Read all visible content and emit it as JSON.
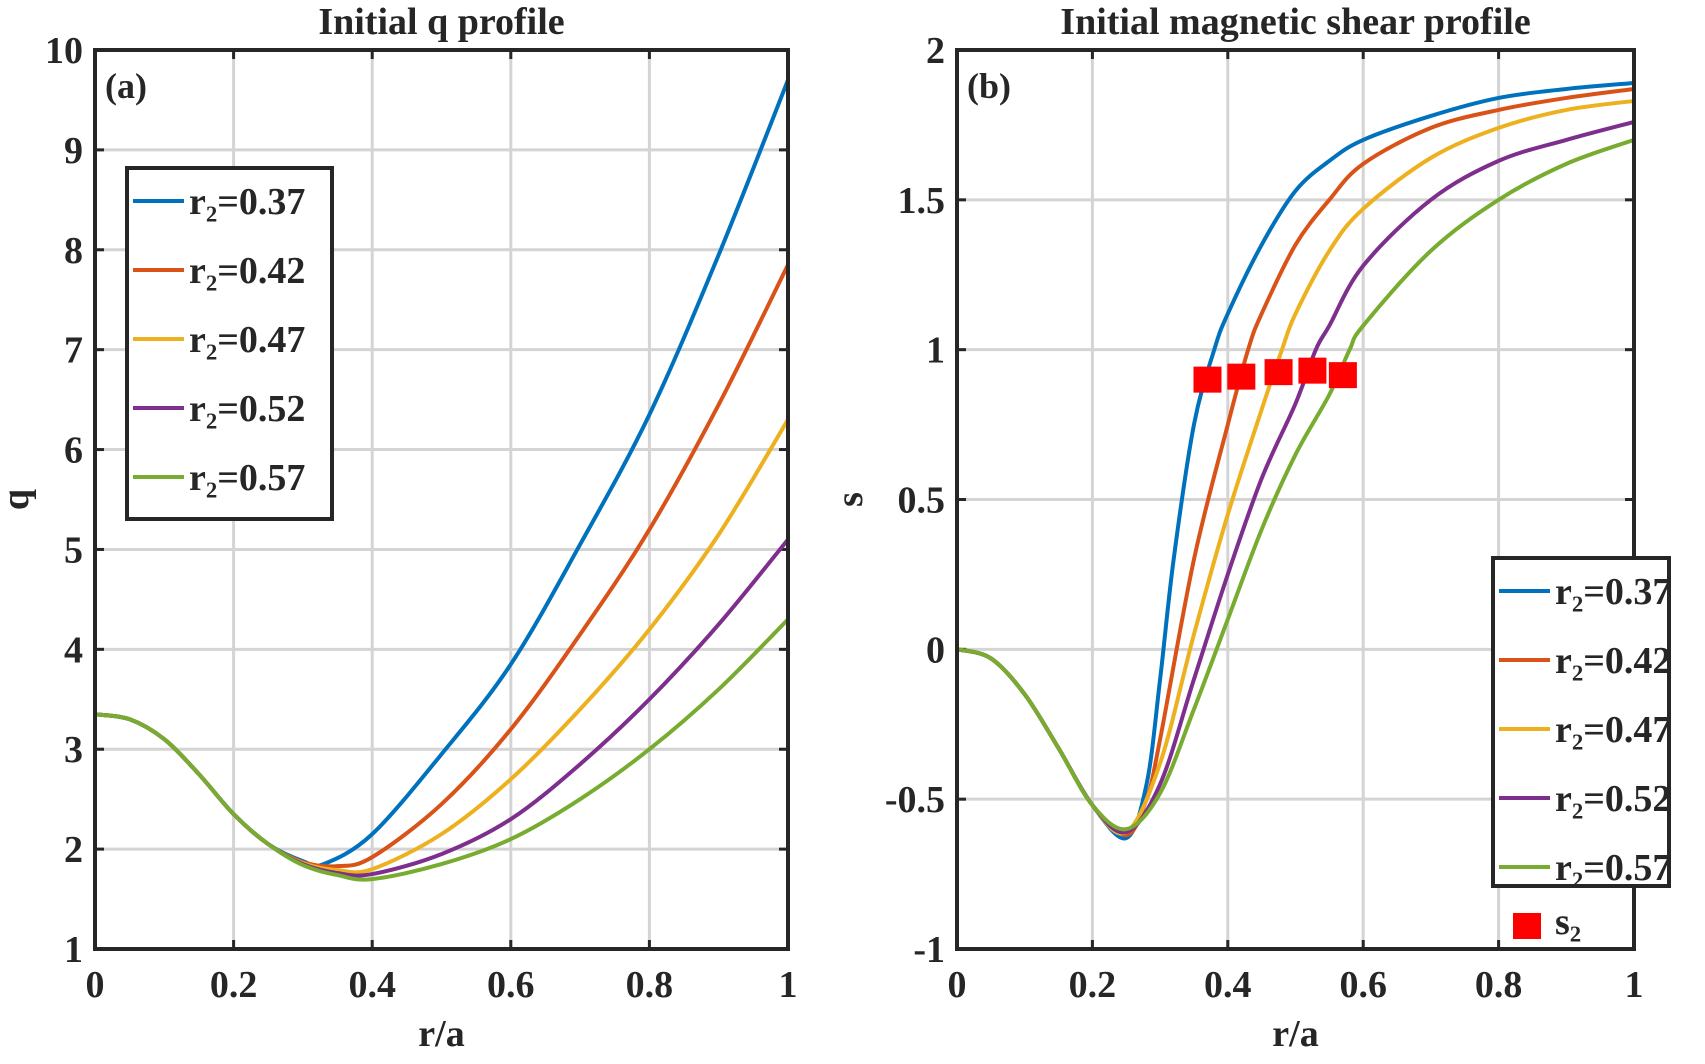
{
  "chart_data": [
    {
      "type": "line",
      "panel_label": "(a)",
      "title": "Initial q profile",
      "xlabel": "r/a",
      "ylabel": "q",
      "xlim": [
        0,
        1
      ],
      "ylim": [
        1,
        10
      ],
      "xticks": [
        "0",
        "0.2",
        "0.4",
        "0.6",
        "0.8",
        "1"
      ],
      "yticks": [
        "1",
        "2",
        "3",
        "4",
        "5",
        "6",
        "7",
        "8",
        "9",
        "10"
      ],
      "grid": true,
      "legend_position": "upper-left",
      "series": [
        {
          "name": "r₂=0.37",
          "color": "#0072BD",
          "x": [
            0,
            0.05,
            0.1,
            0.15,
            0.2,
            0.25,
            0.3,
            0.33,
            0.4,
            0.5,
            0.6,
            0.7,
            0.8,
            0.9,
            1.0
          ],
          "y": [
            3.35,
            3.3,
            3.1,
            2.75,
            2.35,
            2.05,
            1.88,
            1.85,
            2.15,
            2.95,
            3.85,
            5.05,
            6.35,
            7.95,
            9.7
          ]
        },
        {
          "name": "r₂=0.42",
          "color": "#D95319",
          "x": [
            0,
            0.05,
            0.1,
            0.15,
            0.2,
            0.25,
            0.3,
            0.35,
            0.4,
            0.5,
            0.6,
            0.7,
            0.8,
            0.9,
            1.0
          ],
          "y": [
            3.35,
            3.3,
            3.1,
            2.75,
            2.35,
            2.05,
            1.87,
            1.83,
            1.92,
            2.45,
            3.2,
            4.15,
            5.2,
            6.45,
            7.85
          ]
        },
        {
          "name": "r₂=0.47",
          "color": "#EDB120",
          "x": [
            0,
            0.05,
            0.1,
            0.15,
            0.2,
            0.25,
            0.3,
            0.35,
            0.4,
            0.5,
            0.6,
            0.7,
            0.8,
            0.9,
            1.0
          ],
          "y": [
            3.35,
            3.3,
            3.1,
            2.75,
            2.35,
            2.05,
            1.86,
            1.79,
            1.8,
            2.15,
            2.7,
            3.4,
            4.2,
            5.15,
            6.3
          ]
        },
        {
          "name": "r₂=0.52",
          "color": "#7E2F8E",
          "x": [
            0,
            0.05,
            0.1,
            0.15,
            0.2,
            0.25,
            0.3,
            0.35,
            0.4,
            0.5,
            0.6,
            0.7,
            0.8,
            0.9,
            1.0
          ],
          "y": [
            3.35,
            3.3,
            3.1,
            2.75,
            2.35,
            2.05,
            1.85,
            1.76,
            1.75,
            1.95,
            2.3,
            2.85,
            3.5,
            4.25,
            5.1
          ]
        },
        {
          "name": "r₂=0.57",
          "color": "#77AC30",
          "x": [
            0,
            0.05,
            0.1,
            0.15,
            0.2,
            0.25,
            0.3,
            0.35,
            0.4,
            0.5,
            0.6,
            0.7,
            0.8,
            0.9,
            1.0
          ],
          "y": [
            3.35,
            3.3,
            3.1,
            2.75,
            2.35,
            2.05,
            1.84,
            1.74,
            1.7,
            1.85,
            2.1,
            2.5,
            3.0,
            3.6,
            4.3
          ]
        }
      ]
    },
    {
      "type": "line",
      "panel_label": "(b)",
      "title": "Initial magnetic shear profile",
      "xlabel": "r/a",
      "ylabel": "s",
      "xlim": [
        0,
        1
      ],
      "ylim": [
        -1,
        2
      ],
      "xticks": [
        "0",
        "0.2",
        "0.4",
        "0.6",
        "0.8",
        "1"
      ],
      "yticks": [
        "-1",
        "-0.5",
        "0",
        "0.5",
        "1",
        "1.5",
        "2"
      ],
      "grid": true,
      "legend_position": "lower-right",
      "series": [
        {
          "name": "r₂=0.37",
          "color": "#0072BD",
          "x": [
            0,
            0.05,
            0.1,
            0.15,
            0.2,
            0.25,
            0.28,
            0.3,
            0.32,
            0.35,
            0.38,
            0.4,
            0.45,
            0.5,
            0.55,
            0.6,
            0.7,
            0.8,
            0.9,
            1.0
          ],
          "y": [
            0,
            -0.03,
            -0.15,
            -0.33,
            -0.52,
            -0.63,
            -0.45,
            -0.1,
            0.3,
            0.75,
            1.0,
            1.12,
            1.35,
            1.53,
            1.63,
            1.7,
            1.78,
            1.84,
            1.87,
            1.89
          ]
        },
        {
          "name": "r₂=0.42",
          "color": "#D95319",
          "x": [
            0,
            0.05,
            0.1,
            0.15,
            0.2,
            0.25,
            0.28,
            0.3,
            0.35,
            0.4,
            0.43,
            0.45,
            0.5,
            0.55,
            0.6,
            0.7,
            0.8,
            0.9,
            1.0
          ],
          "y": [
            0,
            -0.03,
            -0.15,
            -0.33,
            -0.52,
            -0.62,
            -0.5,
            -0.3,
            0.3,
            0.75,
            1.0,
            1.12,
            1.35,
            1.5,
            1.62,
            1.74,
            1.8,
            1.84,
            1.87
          ]
        },
        {
          "name": "r₂=0.47",
          "color": "#EDB120",
          "x": [
            0,
            0.05,
            0.1,
            0.15,
            0.2,
            0.25,
            0.3,
            0.35,
            0.4,
            0.45,
            0.48,
            0.5,
            0.55,
            0.6,
            0.7,
            0.8,
            0.9,
            1.0
          ],
          "y": [
            0,
            -0.03,
            -0.15,
            -0.33,
            -0.52,
            -0.61,
            -0.38,
            0.05,
            0.45,
            0.8,
            1.0,
            1.12,
            1.33,
            1.47,
            1.64,
            1.74,
            1.8,
            1.83
          ]
        },
        {
          "name": "r₂=0.52",
          "color": "#7E2F8E",
          "x": [
            0,
            0.05,
            0.1,
            0.15,
            0.2,
            0.25,
            0.3,
            0.35,
            0.4,
            0.45,
            0.5,
            0.53,
            0.55,
            0.6,
            0.7,
            0.8,
            0.9,
            1.0
          ],
          "y": [
            0,
            -0.03,
            -0.15,
            -0.33,
            -0.52,
            -0.61,
            -0.45,
            -0.1,
            0.25,
            0.57,
            0.82,
            1.0,
            1.08,
            1.28,
            1.5,
            1.63,
            1.7,
            1.76
          ]
        },
        {
          "name": "r₂=0.57",
          "color": "#77AC30",
          "x": [
            0,
            0.05,
            0.1,
            0.15,
            0.2,
            0.25,
            0.3,
            0.35,
            0.4,
            0.45,
            0.5,
            0.55,
            0.58,
            0.6,
            0.7,
            0.8,
            0.9,
            1.0
          ],
          "y": [
            0,
            -0.03,
            -0.15,
            -0.33,
            -0.52,
            -0.6,
            -0.48,
            -0.2,
            0.1,
            0.4,
            0.65,
            0.85,
            1.0,
            1.08,
            1.33,
            1.5,
            1.62,
            1.7
          ]
        }
      ],
      "markers": {
        "name": "s₂",
        "color": "#FF0000",
        "shape": "square",
        "x": [
          0.37,
          0.42,
          0.475,
          0.525,
          0.57
        ],
        "y": [
          0.9,
          0.91,
          0.925,
          0.93,
          0.915
        ]
      }
    }
  ]
}
